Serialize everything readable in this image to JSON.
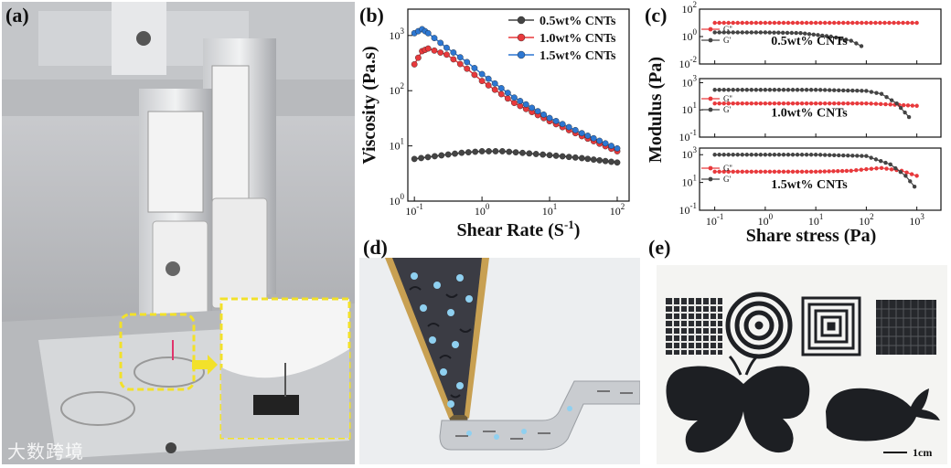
{
  "panels": {
    "a": "(a)",
    "b": "(b)",
    "c": "(c)",
    "d": "(d)",
    "e": "(e)"
  },
  "watermark": "大数跨境",
  "scale_bar_label": "1cm",
  "chart_data": [
    {
      "id": "b",
      "type": "line",
      "xscale": "log",
      "yscale": "log",
      "xlabel": "Shear Rate (S",
      "xlabel_sup": "-1",
      "xlabel_end": ")",
      "ylabel": "Viscosity (Pa.s)",
      "xlim": [
        0.08,
        150
      ],
      "ylim": [
        1,
        3000
      ],
      "xticks": [
        {
          "v": 0.1,
          "b": "10",
          "e": "-1"
        },
        {
          "v": 1,
          "b": "10",
          "e": "0"
        },
        {
          "v": 10,
          "b": "10",
          "e": "1"
        },
        {
          "v": 100,
          "b": "10",
          "e": "2"
        }
      ],
      "yticks": [
        {
          "v": 1,
          "b": "10",
          "e": "0"
        },
        {
          "v": 10,
          "b": "10",
          "e": "1"
        },
        {
          "v": 100,
          "b": "10",
          "e": "2"
        },
        {
          "v": 1000,
          "b": "10",
          "e": "3"
        }
      ],
      "legend": "top-right",
      "series": [
        {
          "name": "0.5wt%  CNTs",
          "color": "#444444",
          "points": [
            [
              0.1,
              5.8
            ],
            [
              0.2,
              6.5
            ],
            [
              0.5,
              7.5
            ],
            [
              1,
              8
            ],
            [
              2,
              8
            ],
            [
              5,
              7.3
            ],
            [
              10,
              6.8
            ],
            [
              30,
              6
            ],
            [
              100,
              5
            ]
          ]
        },
        {
          "name": "1.0wt%  CNTs",
          "color": "#e8393c",
          "points": [
            [
              0.1,
              300
            ],
            [
              0.13,
              520
            ],
            [
              0.16,
              580
            ],
            [
              0.3,
              450
            ],
            [
              0.6,
              250
            ],
            [
              1,
              150
            ],
            [
              3,
              60
            ],
            [
              10,
              28
            ],
            [
              30,
              15
            ],
            [
              100,
              8
            ]
          ]
        },
        {
          "name": "1.5wt%  CNTs",
          "color": "#2d77d2",
          "points": [
            [
              0.1,
              1100
            ],
            [
              0.13,
              1300
            ],
            [
              0.16,
              1100
            ],
            [
              0.3,
              600
            ],
            [
              0.6,
              330
            ],
            [
              1,
              200
            ],
            [
              3,
              75
            ],
            [
              10,
              32
            ],
            [
              30,
              17
            ],
            [
              100,
              9
            ]
          ]
        }
      ]
    },
    {
      "id": "c",
      "type": "line",
      "xscale": "log",
      "yscale": "log",
      "xlabel": "Share stress (Pa)",
      "ylabel": "Modulus (Pa)",
      "xlim": [
        0.05,
        3000
      ],
      "xticks": [
        {
          "v": 0.1,
          "b": "10",
          "e": "-1"
        },
        {
          "v": 1,
          "b": "10",
          "e": "0"
        },
        {
          "v": 10,
          "b": "10",
          "e": "1"
        },
        {
          "v": 100,
          "b": "10",
          "e": "2"
        },
        {
          "v": 1000,
          "b": "10",
          "e": "3"
        }
      ],
      "subplots": [
        {
          "title": "0.5wt% CNTs",
          "ylim": [
            0.01,
            100
          ],
          "yticks": [
            {
              "v": 0.01,
              "b": "10",
              "e": "-2"
            },
            {
              "v": 1,
              "b": "10",
              "e": "0"
            },
            {
              "v": 100,
              "b": "10",
              "e": "2"
            }
          ],
          "series": [
            {
              "name": "G''",
              "color": "#e8393c",
              "points": [
                [
                  0.1,
                  10
                ],
                [
                  1,
                  10
                ],
                [
                  10,
                  10
                ],
                [
                  100,
                  10
                ],
                [
                  1000,
                  10
                ]
              ]
            },
            {
              "name": "G'",
              "color": "#444444",
              "points": [
                [
                  0.1,
                  2
                ],
                [
                  1,
                  2
                ],
                [
                  5,
                  1.8
                ],
                [
                  20,
                  1
                ],
                [
                  50,
                  0.5
                ],
                [
                  80,
                  0.2
                ]
              ]
            }
          ]
        },
        {
          "title": "1.0wt% CNTs",
          "ylim": [
            0.1,
            2000
          ],
          "yticks": [
            {
              "v": 0.1,
              "b": "10",
              "e": "-1"
            },
            {
              "v": 10,
              "b": "10",
              "e": "1"
            },
            {
              "v": 1000,
              "b": "10",
              "e": "3"
            }
          ],
          "series": [
            {
              "name": "G''",
              "color": "#e8393c",
              "points": [
                [
                  0.1,
                  30
                ],
                [
                  1,
                  30
                ],
                [
                  10,
                  30
                ],
                [
                  100,
                  30
                ],
                [
                  300,
                  25
                ],
                [
                  1000,
                  20
                ]
              ]
            },
            {
              "name": "G'",
              "color": "#444444",
              "points": [
                [
                  0.1,
                  300
                ],
                [
                  1,
                  300
                ],
                [
                  10,
                  300
                ],
                [
                  100,
                  250
                ],
                [
                  200,
                  150
                ],
                [
                  400,
                  30
                ],
                [
                  700,
                  3
                ]
              ]
            }
          ]
        },
        {
          "title": "1.5wt% CNTs",
          "ylim": [
            0.1,
            3000
          ],
          "yticks": [
            {
              "v": 0.1,
              "b": "10",
              "e": "-1"
            },
            {
              "v": 10,
              "b": "10",
              "e": "1"
            },
            {
              "v": 1000,
              "b": "10",
              "e": "3"
            }
          ],
          "series": [
            {
              "name": "G''",
              "color": "#e8393c",
              "points": [
                [
                  0.1,
                  60
                ],
                [
                  1,
                  60
                ],
                [
                  10,
                  60
                ],
                [
                  50,
                  70
                ],
                [
                  100,
                  90
                ],
                [
                  200,
                  110
                ],
                [
                  500,
                  70
                ],
                [
                  1000,
                  30
                ]
              ]
            },
            {
              "name": "G'",
              "color": "#444444",
              "points": [
                [
                  0.1,
                  1000
                ],
                [
                  1,
                  1000
                ],
                [
                  10,
                  1000
                ],
                [
                  100,
                  800
                ],
                [
                  300,
                  200
                ],
                [
                  600,
                  30
                ],
                [
                  900,
                  5
                ]
              ]
            }
          ]
        }
      ]
    }
  ]
}
